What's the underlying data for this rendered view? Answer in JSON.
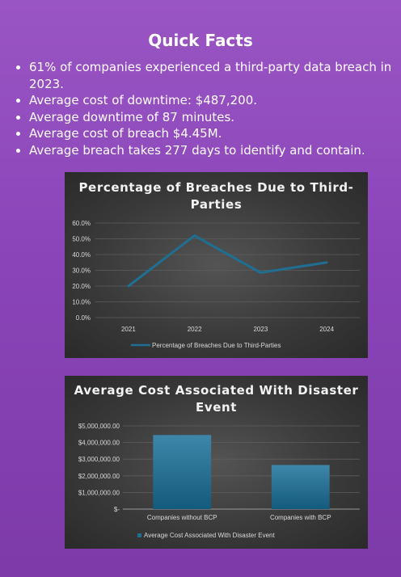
{
  "page": {
    "title": "Quick Facts",
    "facts": [
      "61% of companies experienced a third-party data breach in 2023.",
      "Average cost of downtime: $487,200.",
      "Average downtime of 87 minutes.",
      "Average cost of breach $4.45M.",
      "Average breach takes 277 days to identify and contain."
    ]
  },
  "colors": {
    "background": "#8a44b8",
    "chart_background": "#404040",
    "series": "#1f6f93"
  },
  "chart_data": [
    {
      "type": "line",
      "title": "Percentage of Breaches Due to Third-Parties",
      "categories": [
        "2021",
        "2022",
        "2023",
        "2024"
      ],
      "series": [
        {
          "name": "Percentage of Breaches Due to Third-Parties",
          "values": [
            20.0,
            52.0,
            28.5,
            35.0
          ]
        }
      ],
      "yticks": [
        "0.0%",
        "10.0%",
        "20.0%",
        "30.0%",
        "40.0%",
        "50.0%",
        "60.0%"
      ],
      "ylim": [
        0,
        60
      ],
      "xlabel": "",
      "ylabel": "",
      "grid": true,
      "legend": "bottom"
    },
    {
      "type": "bar",
      "title": "Average Cost Associated With Disaster Event",
      "categories": [
        "Companies without BCP",
        "Companies with BCP"
      ],
      "series": [
        {
          "name": "Average Cost Associated With Disaster Event",
          "values": [
            4450000,
            2650000
          ]
        }
      ],
      "yticks": [
        "$-",
        "$1,000,000.00",
        "$2,000,000.00",
        "$3,000,000.00",
        "$4,000,000.00",
        "$5,000,000.00"
      ],
      "ylim": [
        0,
        5000000
      ],
      "xlabel": "",
      "ylabel": "",
      "grid": true,
      "legend": "bottom"
    }
  ]
}
